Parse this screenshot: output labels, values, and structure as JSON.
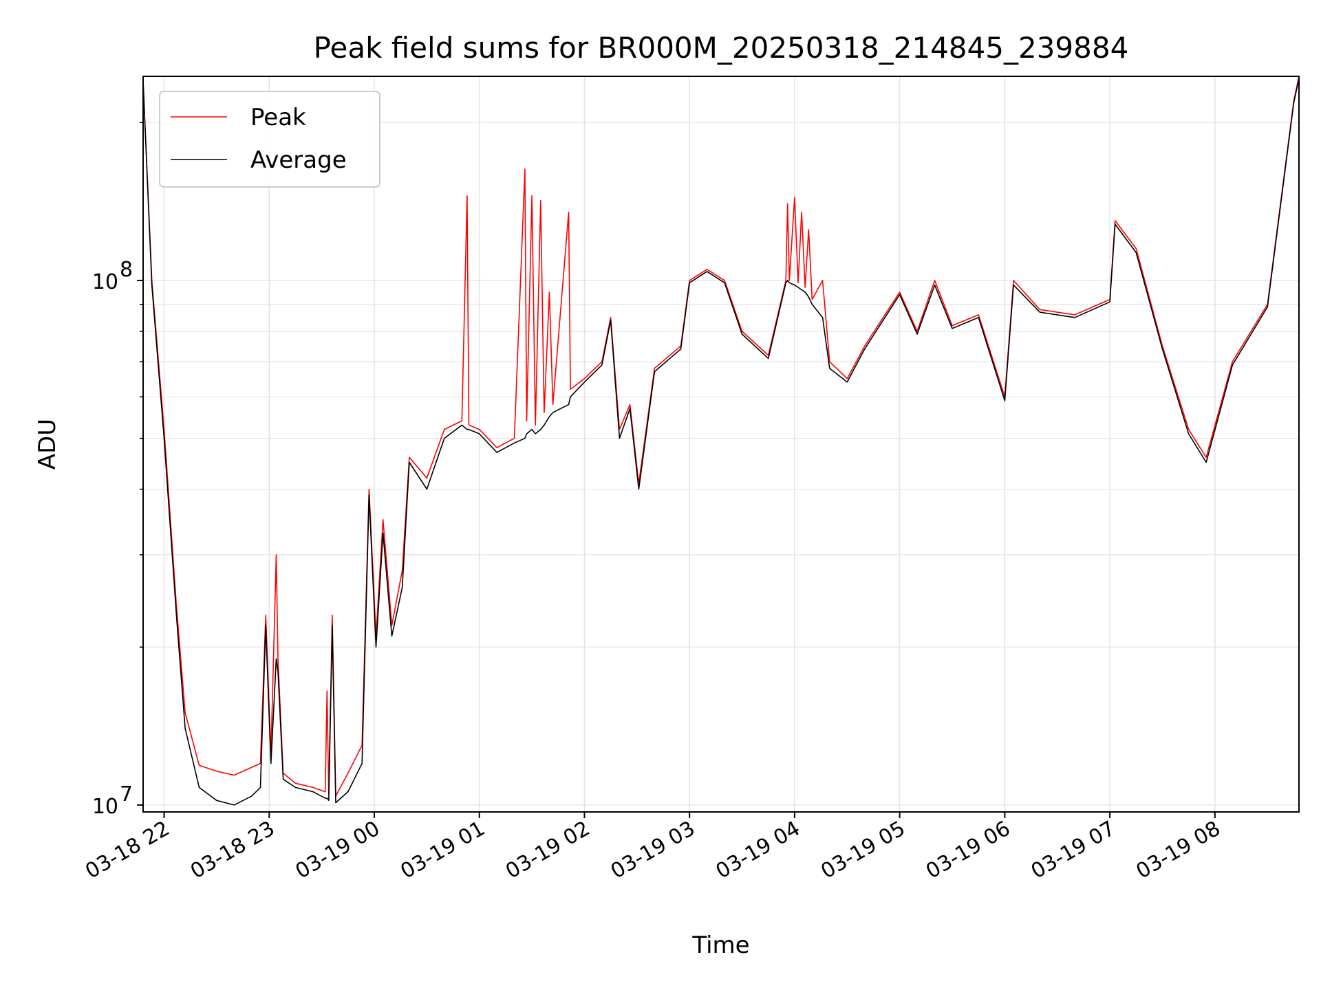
{
  "chart_data": {
    "type": "line",
    "title": "Peak field sums for BR000M_20250318_214845_239884",
    "xlabel": "Time",
    "ylabel": "ADU",
    "yscale": "log",
    "grid": true,
    "legend_position": "top-left",
    "xlim": [
      "2025-03-18 21:48",
      "2025-03-19 08:48"
    ],
    "ylim": [
      9700000,
      245000000
    ],
    "x_ticks": [
      {
        "value": "2025-03-18 22:00",
        "label": "03-18 22"
      },
      {
        "value": "2025-03-18 23:00",
        "label": "03-18 23"
      },
      {
        "value": "2025-03-19 00:00",
        "label": "03-19 00"
      },
      {
        "value": "2025-03-19 01:00",
        "label": "03-19 01"
      },
      {
        "value": "2025-03-19 02:00",
        "label": "03-19 02"
      },
      {
        "value": "2025-03-19 03:00",
        "label": "03-19 03"
      },
      {
        "value": "2025-03-19 04:00",
        "label": "03-19 04"
      },
      {
        "value": "2025-03-19 05:00",
        "label": "03-19 05"
      },
      {
        "value": "2025-03-19 06:00",
        "label": "03-19 06"
      },
      {
        "value": "2025-03-19 07:00",
        "label": "03-19 07"
      },
      {
        "value": "2025-03-19 08:00",
        "label": "03-19 08"
      }
    ],
    "y_ticks": [
      {
        "value": 10000000,
        "base": "10",
        "exp": "7"
      },
      {
        "value": 100000000,
        "base": "10",
        "exp": "8"
      }
    ],
    "series": [
      {
        "name": "Peak",
        "color": "#ff0000",
        "points": [
          [
            "2025-03-18 21:48",
            240000000
          ],
          [
            "2025-03-18 21:53",
            100000000
          ],
          [
            "2025-03-18 22:00",
            52000000
          ],
          [
            "2025-03-18 22:07",
            24000000
          ],
          [
            "2025-03-18 22:12",
            15000000
          ],
          [
            "2025-03-18 22:20",
            11900000
          ],
          [
            "2025-03-18 22:30",
            11600000
          ],
          [
            "2025-03-18 22:40",
            11400000
          ],
          [
            "2025-03-18 22:50",
            11800000
          ],
          [
            "2025-03-18 22:55",
            12000000
          ],
          [
            "2025-03-18 22:58",
            23000000
          ],
          [
            "2025-03-18 23:01",
            12500000
          ],
          [
            "2025-03-18 23:04",
            30000000
          ],
          [
            "2025-03-18 23:05",
            19000000
          ],
          [
            "2025-03-18 23:08",
            11500000
          ],
          [
            "2025-03-18 23:15",
            11000000
          ],
          [
            "2025-03-18 23:25",
            10800000
          ],
          [
            "2025-03-18 23:32",
            10600000
          ],
          [
            "2025-03-18 23:33",
            16500000
          ],
          [
            "2025-03-18 23:34",
            10500000
          ],
          [
            "2025-03-18 23:36",
            23000000
          ],
          [
            "2025-03-18 23:38",
            10400000
          ],
          [
            "2025-03-18 23:45",
            11500000
          ],
          [
            "2025-03-18 23:53",
            13000000
          ],
          [
            "2025-03-18 23:57",
            40000000
          ],
          [
            "2025-03-19 00:01",
            21000000
          ],
          [
            "2025-03-19 00:05",
            35000000
          ],
          [
            "2025-03-19 00:10",
            22000000
          ],
          [
            "2025-03-19 00:16",
            28000000
          ],
          [
            "2025-03-19 00:20",
            46000000
          ],
          [
            "2025-03-19 00:30",
            42000000
          ],
          [
            "2025-03-19 00:40",
            52000000
          ],
          [
            "2025-03-19 00:50",
            54000000
          ],
          [
            "2025-03-19 00:53",
            145000000
          ],
          [
            "2025-03-19 00:54",
            53000000
          ],
          [
            "2025-03-19 01:00",
            52000000
          ],
          [
            "2025-03-19 01:10",
            48000000
          ],
          [
            "2025-03-19 01:20",
            50000000
          ],
          [
            "2025-03-19 01:26",
            163000000
          ],
          [
            "2025-03-19 01:27",
            54000000
          ],
          [
            "2025-03-19 01:30",
            145000000
          ],
          [
            "2025-03-19 01:32",
            53000000
          ],
          [
            "2025-03-19 01:35",
            142000000
          ],
          [
            "2025-03-19 01:37",
            56000000
          ],
          [
            "2025-03-19 01:40",
            95000000
          ],
          [
            "2025-03-19 01:42",
            58000000
          ],
          [
            "2025-03-19 01:51",
            135000000
          ],
          [
            "2025-03-19 01:52",
            62000000
          ],
          [
            "2025-03-19 02:00",
            65000000
          ],
          [
            "2025-03-19 02:10",
            70000000
          ],
          [
            "2025-03-19 02:15",
            85000000
          ],
          [
            "2025-03-19 02:20",
            52000000
          ],
          [
            "2025-03-19 02:26",
            58000000
          ],
          [
            "2025-03-19 02:31",
            41000000
          ],
          [
            "2025-03-19 02:40",
            68000000
          ],
          [
            "2025-03-19 02:55",
            75000000
          ],
          [
            "2025-03-19 03:00",
            100000000
          ],
          [
            "2025-03-19 03:10",
            105000000
          ],
          [
            "2025-03-19 03:20",
            100000000
          ],
          [
            "2025-03-19 03:30",
            80000000
          ],
          [
            "2025-03-19 03:45",
            72000000
          ],
          [
            "2025-03-19 03:55",
            100000000
          ],
          [
            "2025-03-19 03:56",
            140000000
          ],
          [
            "2025-03-19 03:57",
            100000000
          ],
          [
            "2025-03-19 04:00",
            144000000
          ],
          [
            "2025-03-19 04:02",
            99000000
          ],
          [
            "2025-03-19 04:04",
            135000000
          ],
          [
            "2025-03-19 04:06",
            97000000
          ],
          [
            "2025-03-19 04:08",
            125000000
          ],
          [
            "2025-03-19 04:10",
            92000000
          ],
          [
            "2025-03-19 04:16",
            100000000
          ],
          [
            "2025-03-19 04:20",
            70000000
          ],
          [
            "2025-03-19 04:30",
            65000000
          ],
          [
            "2025-03-19 04:40",
            75000000
          ],
          [
            "2025-03-19 05:00",
            95000000
          ],
          [
            "2025-03-19 05:10",
            80000000
          ],
          [
            "2025-03-19 05:20",
            100000000
          ],
          [
            "2025-03-19 05:30",
            82000000
          ],
          [
            "2025-03-19 05:45",
            86000000
          ],
          [
            "2025-03-19 06:00",
            60000000
          ],
          [
            "2025-03-19 06:05",
            100000000
          ],
          [
            "2025-03-19 06:20",
            88000000
          ],
          [
            "2025-03-19 06:40",
            86000000
          ],
          [
            "2025-03-19 07:00",
            92000000
          ],
          [
            "2025-03-19 07:03",
            130000000
          ],
          [
            "2025-03-19 07:15",
            115000000
          ],
          [
            "2025-03-19 07:30",
            75000000
          ],
          [
            "2025-03-19 07:45",
            52000000
          ],
          [
            "2025-03-19 07:55",
            46000000
          ],
          [
            "2025-03-19 08:10",
            70000000
          ],
          [
            "2025-03-19 08:30",
            90000000
          ],
          [
            "2025-03-19 08:45",
            220000000
          ],
          [
            "2025-03-19 08:48",
            245000000
          ]
        ]
      },
      {
        "name": "Average",
        "color": "#000000",
        "points": [
          [
            "2025-03-18 21:48",
            240000000
          ],
          [
            "2025-03-18 21:53",
            98000000
          ],
          [
            "2025-03-18 22:00",
            50000000
          ],
          [
            "2025-03-18 22:07",
            23000000
          ],
          [
            "2025-03-18 22:12",
            14000000
          ],
          [
            "2025-03-18 22:20",
            10800000
          ],
          [
            "2025-03-18 22:30",
            10200000
          ],
          [
            "2025-03-18 22:40",
            10000000
          ],
          [
            "2025-03-18 22:50",
            10400000
          ],
          [
            "2025-03-18 22:55",
            10800000
          ],
          [
            "2025-03-18 22:58",
            22000000
          ],
          [
            "2025-03-18 23:01",
            12000000
          ],
          [
            "2025-03-18 23:04",
            19000000
          ],
          [
            "2025-03-18 23:05",
            18000000
          ],
          [
            "2025-03-18 23:08",
            11200000
          ],
          [
            "2025-03-18 23:15",
            10800000
          ],
          [
            "2025-03-18 23:25",
            10600000
          ],
          [
            "2025-03-18 23:32",
            10300000
          ],
          [
            "2025-03-18 23:33",
            10300000
          ],
          [
            "2025-03-18 23:34",
            10200000
          ],
          [
            "2025-03-18 23:36",
            22000000
          ],
          [
            "2025-03-18 23:38",
            10100000
          ],
          [
            "2025-03-18 23:45",
            10600000
          ],
          [
            "2025-03-18 23:53",
            12000000
          ],
          [
            "2025-03-18 23:57",
            39000000
          ],
          [
            "2025-03-19 00:01",
            20000000
          ],
          [
            "2025-03-19 00:05",
            33000000
          ],
          [
            "2025-03-19 00:10",
            21000000
          ],
          [
            "2025-03-19 00:16",
            26000000
          ],
          [
            "2025-03-19 00:20",
            45000000
          ],
          [
            "2025-03-19 00:30",
            40000000
          ],
          [
            "2025-03-19 00:40",
            50000000
          ],
          [
            "2025-03-19 00:50",
            53000000
          ],
          [
            "2025-03-19 00:53",
            52000000
          ],
          [
            "2025-03-19 00:54",
            52000000
          ],
          [
            "2025-03-19 01:00",
            51000000
          ],
          [
            "2025-03-19 01:10",
            47000000
          ],
          [
            "2025-03-19 01:20",
            49000000
          ],
          [
            "2025-03-19 01:26",
            50000000
          ],
          [
            "2025-03-19 01:27",
            51000000
          ],
          [
            "2025-03-19 01:30",
            52000000
          ],
          [
            "2025-03-19 01:32",
            51000000
          ],
          [
            "2025-03-19 01:35",
            52000000
          ],
          [
            "2025-03-19 01:37",
            53000000
          ],
          [
            "2025-03-19 01:40",
            55000000
          ],
          [
            "2025-03-19 01:42",
            56000000
          ],
          [
            "2025-03-19 01:51",
            58000000
          ],
          [
            "2025-03-19 01:52",
            60000000
          ],
          [
            "2025-03-19 02:00",
            64000000
          ],
          [
            "2025-03-19 02:10",
            69000000
          ],
          [
            "2025-03-19 02:15",
            84000000
          ],
          [
            "2025-03-19 02:20",
            50000000
          ],
          [
            "2025-03-19 02:26",
            57000000
          ],
          [
            "2025-03-19 02:31",
            40000000
          ],
          [
            "2025-03-19 02:40",
            67000000
          ],
          [
            "2025-03-19 02:55",
            74000000
          ],
          [
            "2025-03-19 03:00",
            99000000
          ],
          [
            "2025-03-19 03:10",
            104000000
          ],
          [
            "2025-03-19 03:20",
            99000000
          ],
          [
            "2025-03-19 03:30",
            79000000
          ],
          [
            "2025-03-19 03:45",
            71000000
          ],
          [
            "2025-03-19 03:55",
            99000000
          ],
          [
            "2025-03-19 03:56",
            100000000
          ],
          [
            "2025-03-19 03:57",
            99000000
          ],
          [
            "2025-03-19 04:00",
            98000000
          ],
          [
            "2025-03-19 04:02",
            97000000
          ],
          [
            "2025-03-19 04:04",
            96000000
          ],
          [
            "2025-03-19 04:06",
            95000000
          ],
          [
            "2025-03-19 04:08",
            93000000
          ],
          [
            "2025-03-19 04:10",
            90000000
          ],
          [
            "2025-03-19 04:16",
            85000000
          ],
          [
            "2025-03-19 04:20",
            68000000
          ],
          [
            "2025-03-19 04:30",
            64000000
          ],
          [
            "2025-03-19 04:40",
            74000000
          ],
          [
            "2025-03-19 05:00",
            94000000
          ],
          [
            "2025-03-19 05:10",
            79000000
          ],
          [
            "2025-03-19 05:20",
            98000000
          ],
          [
            "2025-03-19 05:30",
            81000000
          ],
          [
            "2025-03-19 05:45",
            85000000
          ],
          [
            "2025-03-19 06:00",
            59000000
          ],
          [
            "2025-03-19 06:05",
            98000000
          ],
          [
            "2025-03-19 06:20",
            87000000
          ],
          [
            "2025-03-19 06:40",
            85000000
          ],
          [
            "2025-03-19 07:00",
            91000000
          ],
          [
            "2025-03-19 07:03",
            128000000
          ],
          [
            "2025-03-19 07:15",
            113000000
          ],
          [
            "2025-03-19 07:30",
            74000000
          ],
          [
            "2025-03-19 07:45",
            51000000
          ],
          [
            "2025-03-19 07:55",
            45000000
          ],
          [
            "2025-03-19 08:10",
            69000000
          ],
          [
            "2025-03-19 08:30",
            89000000
          ],
          [
            "2025-03-19 08:45",
            218000000
          ],
          [
            "2025-03-19 08:48",
            243000000
          ]
        ]
      }
    ]
  }
}
